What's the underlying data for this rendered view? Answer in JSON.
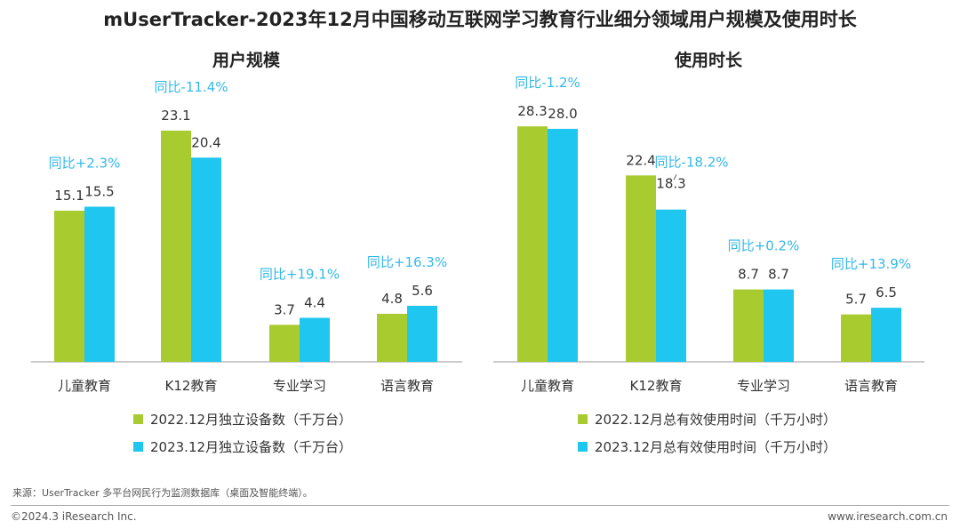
{
  "title": "mUserTracker-2023年12月中国移动互联网学习教育行业细分领域用户规模及使用时长",
  "colors": {
    "s2022": "#a8cb2f",
    "s2023": "#1fc6ef",
    "annotation": "#34b8e8"
  },
  "chart_data": [
    {
      "type": "bar",
      "title": "用户规模",
      "categories": [
        "儿童教育",
        "K12教育",
        "专业学习",
        "语言教育"
      ],
      "series": [
        {
          "name": "2022.12月独立设备数（千万台）",
          "values": [
            15.1,
            23.1,
            3.7,
            4.8
          ]
        },
        {
          "name": "2023.12月独立设备数（千万台）",
          "values": [
            15.5,
            20.4,
            4.4,
            5.6
          ]
        }
      ],
      "annotations": [
        "同比+2.3%",
        "同比-11.4%",
        "同比+19.1%",
        "同比+16.3%"
      ],
      "labels": [
        [
          "15.1",
          "15.5"
        ],
        [
          "23.1",
          "20.4"
        ],
        [
          "3.7",
          "4.4"
        ],
        [
          "4.8",
          "5.6"
        ]
      ],
      "legend": "bottom",
      "grid": false
    },
    {
      "type": "bar",
      "title": "使用时长",
      "categories": [
        "儿童教育",
        "K12教育",
        "专业学习",
        "语言教育"
      ],
      "series": [
        {
          "name": "2022.12月总有效使用时间（千万小时）",
          "values": [
            28.3,
            22.4,
            8.7,
            5.7
          ]
        },
        {
          "name": "2023.12月总有效使用时间（千万小时）",
          "values": [
            28.0,
            18.3,
            8.7,
            6.5
          ]
        }
      ],
      "annotations": [
        "同比-1.2%",
        "同比-18.2%",
        "同比+0.2%",
        "同比+13.9%"
      ],
      "labels": [
        [
          "28.3",
          "28.0"
        ],
        [
          "22.4",
          "18.3"
        ],
        [
          "8.7",
          "8.7"
        ],
        [
          "5.7",
          "6.5"
        ]
      ],
      "legend": "bottom",
      "grid": false
    }
  ],
  "footer": {
    "source": "来源：UserTracker 多平台网民行为监测数据库（桌面及智能终端）。",
    "copyright": "©2024.3 iResearch Inc.",
    "url": "www.iresearch.com.cn"
  }
}
